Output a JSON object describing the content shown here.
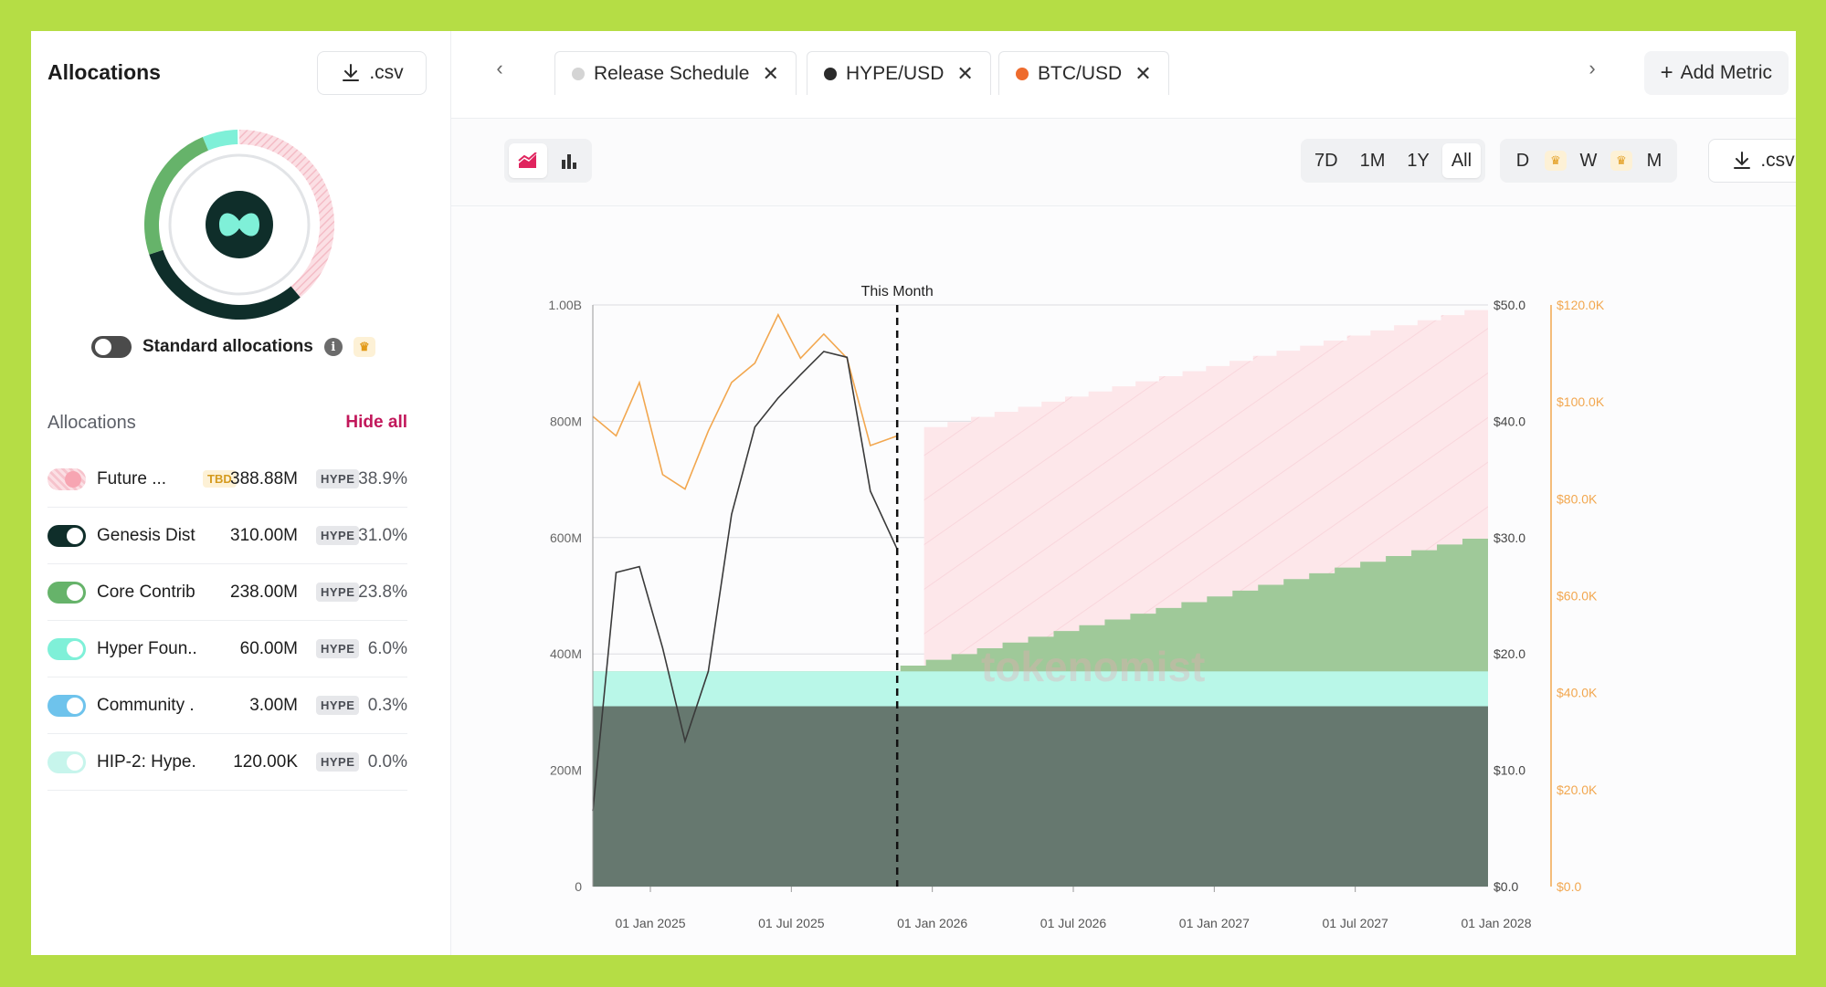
{
  "left_panel": {
    "title": "Allocations",
    "csv_label": ".csv",
    "standard_allocations_label": "Standard allocations",
    "list_header": "Allocations",
    "hide_all_label": "Hide all",
    "items": [
      {
        "name": "Future ...",
        "tbd": "TBD",
        "amount": "388.88M",
        "unit": "HYPE",
        "pct": "38.9%",
        "color": "#f6c3cc",
        "on": false
      },
      {
        "name": "Genesis Dist...",
        "tbd": "",
        "amount": "310.00M",
        "unit": "HYPE",
        "pct": "31.0%",
        "color": "#0f2e2a",
        "on": true
      },
      {
        "name": "Core Contrib...",
        "tbd": "",
        "amount": "238.00M",
        "unit": "HYPE",
        "pct": "23.8%",
        "color": "#66b36a",
        "on": true
      },
      {
        "name": "Hyper Foun...",
        "tbd": "",
        "amount": "60.00M",
        "unit": "HYPE",
        "pct": "6.0%",
        "color": "#7ff0d8",
        "on": true
      },
      {
        "name": "Community ...",
        "tbd": "",
        "amount": "3.00M",
        "unit": "HYPE",
        "pct": "0.3%",
        "color": "#6ec3ec",
        "on": true
      },
      {
        "name": "HIP-2: Hype...",
        "tbd": "",
        "amount": "120.00K",
        "unit": "HYPE",
        "pct": "0.0%",
        "color": "#c7f5ec",
        "on": true
      }
    ]
  },
  "tabs": {
    "metrics": [
      {
        "label": "Release Schedule",
        "dot_color": "#d4d4d4"
      },
      {
        "label": "HYPE/USD",
        "dot_color": "#2b2b2b"
      },
      {
        "label": "BTC/USD",
        "dot_color": "#ee6b2d"
      }
    ],
    "add_metric_label": "Add Metric"
  },
  "toolbar": {
    "ranges": [
      "7D",
      "1M",
      "1Y",
      "All"
    ],
    "active_range": "All",
    "intervals": [
      "D",
      "W",
      "M"
    ],
    "csv_label": ".csv"
  },
  "chart_data": {
    "type": "area",
    "annotation": "This Month",
    "watermark": "tokenomist",
    "x_ticks": [
      "01 Jan 2025",
      "01 Jul 2025",
      "01 Jan 2026",
      "01 Jul 2026",
      "01 Jan 2027",
      "01 Jul 2027",
      "01 Jan 2028"
    ],
    "y_left": {
      "ticks": [
        "0",
        "200M",
        "400M",
        "600M",
        "800M",
        "1.00B"
      ],
      "range": [
        0,
        1000000000
      ]
    },
    "y_right_hype": {
      "ticks": [
        "$0.0",
        "$10.0",
        "$20.0",
        "$30.0",
        "$40.0",
        "$50.0"
      ],
      "range": [
        0,
        50
      ]
    },
    "y_right_btc": {
      "ticks": [
        "$0.0",
        "$20.0K",
        "$40.0K",
        "$60.0K",
        "$80.0K",
        "$100.0K",
        "$120.0K"
      ],
      "range": [
        0,
        120000
      ],
      "color": "#f2a74f"
    },
    "this_month_x": 0.34,
    "release_series": [
      {
        "name": "Genesis Distribution",
        "color": "#66786f",
        "start": 310000000,
        "end": 310000000
      },
      {
        "name": "Hyper Foundation",
        "color": "#b9f7e8",
        "start": 370000000,
        "end": 370000000
      },
      {
        "name": "Core Contributors",
        "color": "#9fc999",
        "start": 370000000,
        "end": 608000000,
        "vest_start_x": 0.315
      },
      {
        "name": "Future",
        "color": "#fde7ea",
        "start": 790000000,
        "end": 1000000000,
        "vest_start_x": 0.37
      }
    ],
    "hype_usd": [
      [
        0.0,
        6.5
      ],
      [
        0.026,
        27
      ],
      [
        0.052,
        27.5
      ],
      [
        0.078,
        20.5
      ],
      [
        0.103,
        12.5
      ],
      [
        0.129,
        18.5
      ],
      [
        0.155,
        32
      ],
      [
        0.181,
        39.5
      ],
      [
        0.207,
        42
      ],
      [
        0.232,
        44
      ],
      [
        0.258,
        46
      ],
      [
        0.284,
        45.5
      ],
      [
        0.31,
        34
      ],
      [
        0.34,
        29
      ]
    ],
    "btc_usd": [
      [
        0.0,
        97000
      ],
      [
        0.026,
        93000
      ],
      [
        0.052,
        104000
      ],
      [
        0.078,
        85000
      ],
      [
        0.103,
        82000
      ],
      [
        0.129,
        94000
      ],
      [
        0.155,
        104000
      ],
      [
        0.181,
        108000
      ],
      [
        0.207,
        118000
      ],
      [
        0.232,
        109000
      ],
      [
        0.258,
        114000
      ],
      [
        0.284,
        109000
      ],
      [
        0.31,
        91000
      ],
      [
        0.34,
        93000
      ]
    ]
  }
}
